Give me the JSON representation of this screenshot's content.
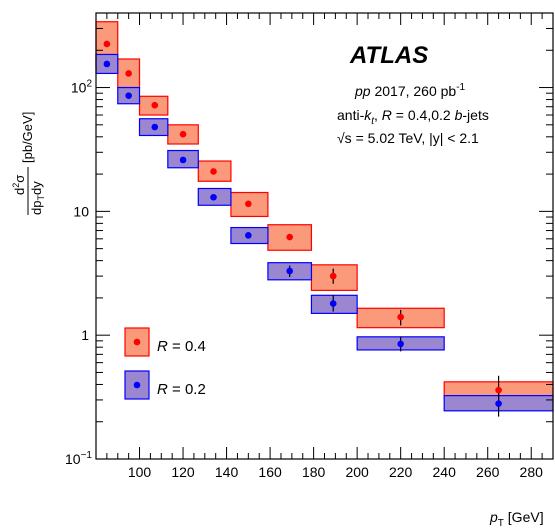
{
  "chart_data": {
    "type": "scatter",
    "title": "ATLAS",
    "annotations": [
      {
        "pre": "pp",
        "mid": " 2017, 260 pb",
        "sup": "-1"
      },
      {
        "pre": "anti-",
        "k": "k",
        "ksub": "t",
        "mid": ", ",
        "R": "R",
        "post": " = 0.4,0.2 ",
        "b": "b",
        "tail": "-jets"
      },
      {
        "text": "√s = 5.02 TeV, |y| < 2.1"
      }
    ],
    "xlabel": {
      "pt": "p",
      "sub": "T",
      "unit": " [GeV]"
    },
    "ylabel": {
      "num_pre": "d",
      "num_sup": "2",
      "num_post": "σ",
      "den_pre": "dp",
      "den_sub": "T",
      "den_post": "dy",
      "unit": " [pb/GeV]"
    },
    "xlim": [
      80,
      290
    ],
    "ylim": [
      0.1,
      400
    ],
    "yscale": "log",
    "x_ticks": [
      100,
      120,
      140,
      160,
      180,
      200,
      220,
      240,
      260,
      280
    ],
    "y_ticks": [
      {
        "value": 100,
        "base": "10",
        "exp": "2"
      },
      {
        "value": 10,
        "base": "10",
        "exp": ""
      },
      {
        "value": 1,
        "base": "1",
        "exp": ""
      },
      {
        "value": 0.1,
        "base": "10",
        "exp": "−1"
      }
    ],
    "legend": {
      "position": "bottom-left"
    },
    "series": [
      {
        "name": "R = 0.4",
        "label_R": "R",
        "label_rest": " = 0.4",
        "marker_color": "#ff0000",
        "fill_color": "#fa9a7a",
        "edge_color": "#ff0000",
        "points": [
          {
            "x": 85,
            "y": 225,
            "xlo": 80,
            "xhi": 90,
            "syslo": 145,
            "syshi": 340
          },
          {
            "x": 95,
            "y": 130,
            "xlo": 90,
            "xhi": 100,
            "syslo": 100,
            "syshi": 170
          },
          {
            "x": 107,
            "y": 72,
            "xlo": 100,
            "xhi": 113,
            "syslo": 60,
            "syshi": 85
          },
          {
            "x": 120,
            "y": 42,
            "xlo": 113,
            "xhi": 127,
            "syslo": 35,
            "syshi": 50
          },
          {
            "x": 134,
            "y": 21,
            "xlo": 127,
            "xhi": 142,
            "syslo": 17.5,
            "syshi": 25.5
          },
          {
            "x": 150,
            "y": 11.5,
            "xlo": 142,
            "xhi": 159,
            "syslo": 9.1,
            "syshi": 14.2
          },
          {
            "x": 169,
            "y": 6.2,
            "xlo": 159,
            "xhi": 179,
            "syslo": 4.85,
            "syshi": 7.8
          },
          {
            "x": 189,
            "y": 3.0,
            "xlo": 179,
            "xhi": 200,
            "syslo": 2.3,
            "syshi": 3.7,
            "statlo": 2.6,
            "stathi": 3.45
          },
          {
            "x": 220,
            "y": 1.4,
            "xlo": 200,
            "xhi": 240,
            "syslo": 1.15,
            "syshi": 1.65,
            "statlo": 1.2,
            "stathi": 1.6
          },
          {
            "x": 265,
            "y": 0.36,
            "xlo": 240,
            "xhi": 290,
            "syslo": 0.31,
            "syshi": 0.42,
            "statlo": 0.29,
            "stathi": 0.47
          }
        ]
      },
      {
        "name": "R = 0.2",
        "label_R": "R",
        "label_rest": " = 0.2",
        "marker_color": "#0000ff",
        "fill_color": "#9b87d0",
        "edge_color": "#0000ff",
        "points": [
          {
            "x": 85,
            "y": 155,
            "xlo": 80,
            "xhi": 90,
            "syslo": 130,
            "syshi": 185
          },
          {
            "x": 95,
            "y": 86,
            "xlo": 90,
            "xhi": 100,
            "syslo": 74,
            "syshi": 100
          },
          {
            "x": 107,
            "y": 48,
            "xlo": 100,
            "xhi": 113,
            "syslo": 41,
            "syshi": 56
          },
          {
            "x": 120,
            "y": 26,
            "xlo": 113,
            "xhi": 127,
            "syslo": 22.5,
            "syshi": 31
          },
          {
            "x": 134,
            "y": 13,
            "xlo": 127,
            "xhi": 142,
            "syslo": 11.2,
            "syshi": 15.3
          },
          {
            "x": 150,
            "y": 6.4,
            "xlo": 142,
            "xhi": 159,
            "syslo": 5.5,
            "syshi": 7.4
          },
          {
            "x": 169,
            "y": 3.3,
            "xlo": 159,
            "xhi": 179,
            "syslo": 2.8,
            "syshi": 3.85,
            "statlo": 2.95,
            "stathi": 3.65
          },
          {
            "x": 189,
            "y": 1.8,
            "xlo": 179,
            "xhi": 200,
            "syslo": 1.5,
            "syshi": 2.1,
            "statlo": 1.55,
            "stathi": 2.1
          },
          {
            "x": 220,
            "y": 0.85,
            "xlo": 200,
            "xhi": 240,
            "syslo": 0.76,
            "syshi": 0.97,
            "statlo": 0.74,
            "stathi": 0.97
          },
          {
            "x": 265,
            "y": 0.28,
            "xlo": 240,
            "xhi": 290,
            "syslo": 0.245,
            "syshi": 0.325,
            "statlo": 0.22,
            "stathi": 0.34
          }
        ]
      }
    ]
  }
}
